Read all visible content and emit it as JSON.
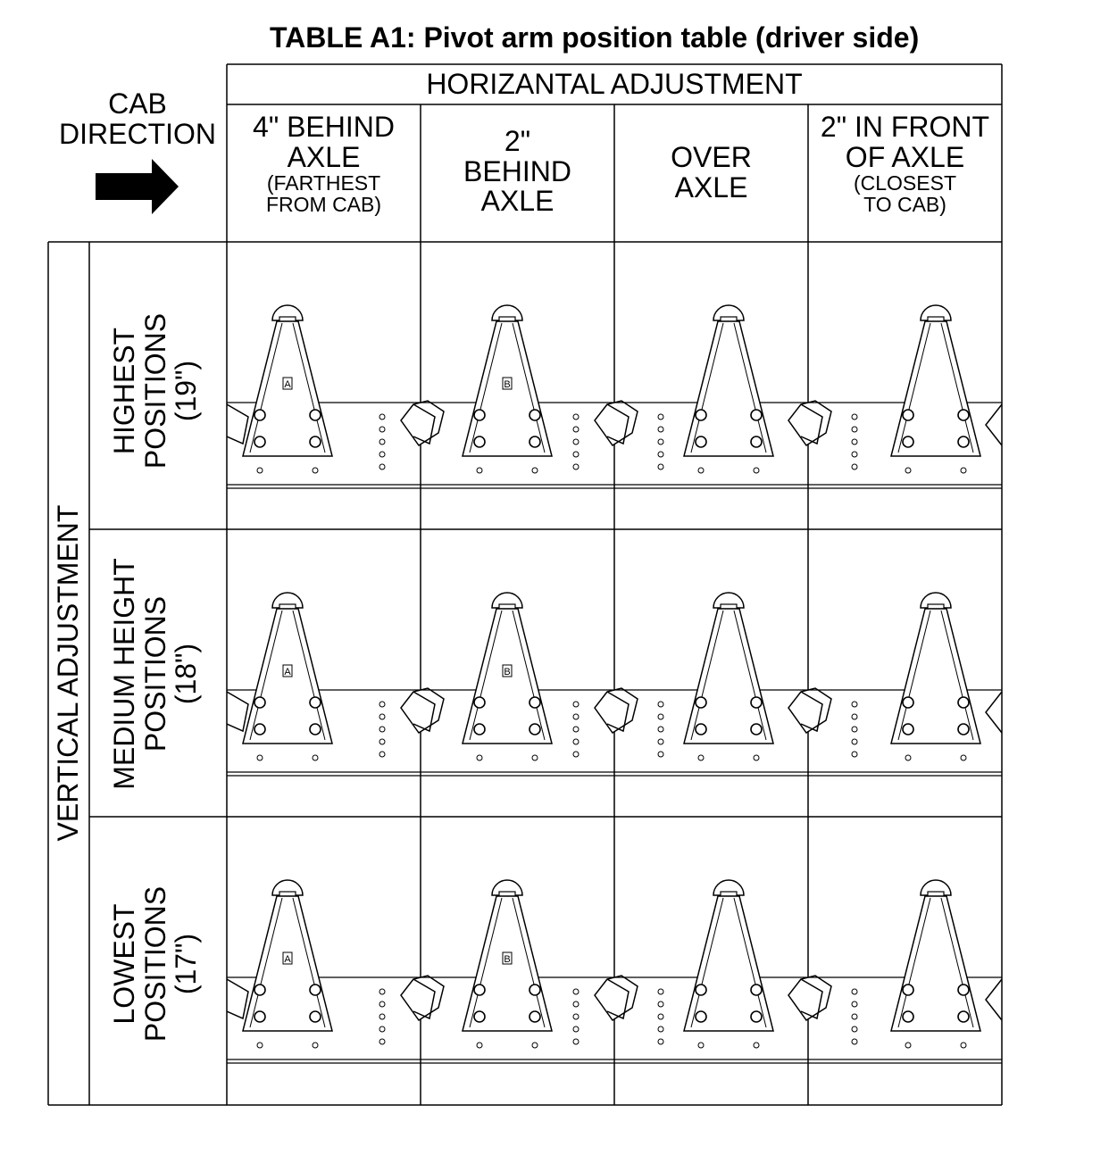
{
  "title": "TABLE A1: Pivot arm position table (driver side)",
  "cab_direction": {
    "line1": "CAB",
    "line2": "DIRECTION",
    "arrow": "right-arrow-icon"
  },
  "horizontal_header": "HORIZANTAL ADJUSTMENT",
  "vertical_header": "VERTICAL ADJUSTMENT",
  "columns": [
    {
      "line1": "4\"  BEHIND",
      "line2": "AXLE",
      "note1": "(FARTHEST",
      "note2": "FROM CAB)",
      "plate_label": "A"
    },
    {
      "line1": "2\"",
      "line2": "BEHIND",
      "line3": "AXLE",
      "plate_label": "B"
    },
    {
      "line1": "OVER",
      "line2": "AXLE",
      "plate_label": ""
    },
    {
      "line1": "2\" IN FRONT",
      "line2": "OF AXLE",
      "note1": "(CLOSEST",
      "note2": "TO CAB)",
      "plate_label": ""
    }
  ],
  "rows": [
    {
      "line1": "HIGHEST",
      "line2": "POSITIONS",
      "line3": "(19\")"
    },
    {
      "line1": "MEDIUM HEIGHT",
      "line2": "POSITIONS",
      "line3": "(18\")"
    },
    {
      "line1": "LOWEST",
      "line2": "POSITIONS",
      "line3": "(17\")"
    }
  ]
}
